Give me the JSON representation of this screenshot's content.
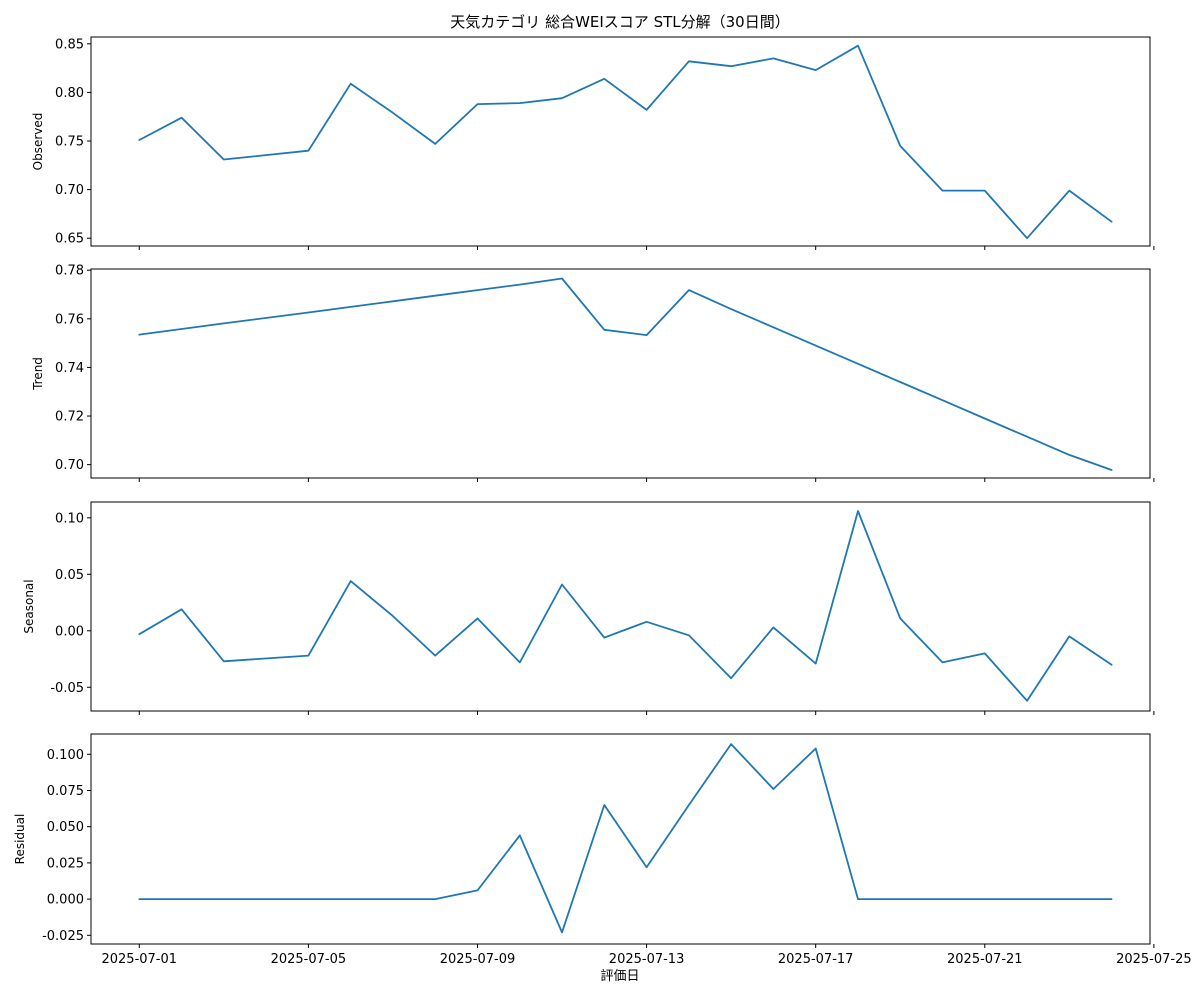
{
  "chart_data": {
    "type": "line",
    "title": "天気カテゴリ 総合WEIスコア STL分解（30日間）",
    "xlabel": "評価日",
    "x_dates": [
      "2025-07-01",
      "2025-07-02",
      "2025-07-03",
      "2025-07-05",
      "2025-07-06",
      "2025-07-07",
      "2025-07-08",
      "2025-07-09",
      "2025-07-10",
      "2025-07-11",
      "2025-07-12",
      "2025-07-13",
      "2025-07-14",
      "2025-07-15",
      "2025-07-16",
      "2025-07-17",
      "2025-07-18",
      "2025-07-19",
      "2025-07-20",
      "2025-07-21",
      "2025-07-22",
      "2025-07-23",
      "2025-07-24"
    ],
    "x_ticks": [
      "2025-07-01",
      "2025-07-05",
      "2025-07-09",
      "2025-07-13",
      "2025-07-17",
      "2025-07-21",
      "2025-07-25"
    ],
    "x_range": [
      "2025-06-30",
      "2025-07-25"
    ],
    "panels": [
      {
        "name": "Observed",
        "ylabel": "Observed",
        "ylim": [
          0.642,
          0.857
        ],
        "yticks": [
          "0.65",
          "0.70",
          "0.75",
          "0.80",
          "0.85"
        ],
        "values": [
          0.751,
          0.774,
          0.731,
          0.74,
          0.809,
          0.779,
          0.747,
          0.788,
          0.789,
          0.794,
          0.814,
          0.782,
          0.832,
          0.827,
          0.835,
          0.823,
          0.848,
          0.745,
          0.699,
          0.699,
          0.65,
          0.699,
          0.667
        ]
      },
      {
        "name": "Trend",
        "ylabel": "Trend",
        "ylim": [
          0.6945,
          0.7805
        ],
        "yticks": [
          "0.70",
          "0.72",
          "0.74",
          "0.76",
          "0.78"
        ],
        "values": [
          0.7535,
          0.7558,
          0.7581,
          0.7626,
          0.7649,
          0.7672,
          0.7695,
          0.7718,
          0.7741,
          0.7766,
          0.7555,
          0.7533,
          0.7718,
          0.764,
          0.7565,
          0.749,
          0.7415,
          0.734,
          0.7265,
          0.719,
          0.7115,
          0.704,
          0.6978
        ]
      },
      {
        "name": "Seasonal",
        "ylabel": "Seasonal",
        "ylim": [
          -0.071,
          0.114
        ],
        "yticks": [
          "-0.05",
          "0.00",
          "0.05",
          "0.10"
        ],
        "values": [
          -0.003,
          0.019,
          -0.027,
          -0.022,
          0.044,
          0.013,
          -0.022,
          0.011,
          -0.028,
          0.041,
          -0.006,
          0.008,
          -0.004,
          -0.042,
          0.003,
          -0.029,
          0.106,
          0.011,
          -0.028,
          -0.02,
          -0.062,
          -0.005,
          -0.03
        ]
      },
      {
        "name": "Residual",
        "ylabel": "Residual",
        "ylim": [
          -0.031,
          0.114
        ],
        "yticks": [
          "-0.025",
          "0.000",
          "0.025",
          "0.050",
          "0.075",
          "0.100"
        ],
        "values": [
          0.0,
          0.0,
          0.0,
          0.0,
          0.0,
          0.0,
          0.0,
          0.006,
          0.044,
          -0.023,
          0.065,
          0.022,
          0.065,
          0.107,
          0.076,
          0.104,
          0.0,
          0.0,
          0.0,
          0.0,
          0.0,
          0.0,
          0.0
        ]
      }
    ]
  }
}
